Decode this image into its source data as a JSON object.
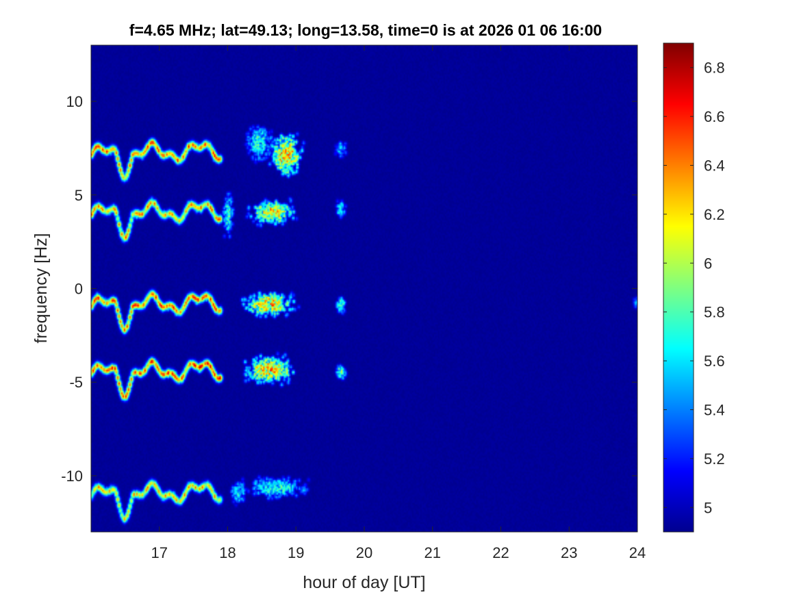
{
  "chart_data": {
    "type": "heatmap",
    "title": "f=4.65 MHz;  lat=49.13; long=13.58, time=0 is at 2026 01 06 16:00",
    "xlabel": "hour of day [UT]",
    "ylabel": "frequency [Hz]",
    "xlim": [
      16,
      24
    ],
    "ylim": [
      -13,
      13
    ],
    "xticks": [
      17,
      18,
      19,
      20,
      21,
      22,
      23,
      24
    ],
    "xtick_labels": [
      "17",
      "18",
      "19",
      "20",
      "21",
      "22",
      "23",
      "24"
    ],
    "yticks": [
      -10,
      -5,
      0,
      5,
      10
    ],
    "ytick_labels": [
      "-10",
      "-5",
      "0",
      "5",
      "10"
    ],
    "colorbar": {
      "limits": [
        4.9,
        6.9
      ],
      "ticks": [
        5,
        5.2,
        5.4,
        5.6,
        5.8,
        6,
        6.2,
        6.4,
        6.6,
        6.8
      ],
      "tick_labels": [
        "5",
        "5.2",
        "5.4",
        "5.6",
        "5.8",
        "6",
        "6.2",
        "6.4",
        "6.6",
        "6.8"
      ],
      "colormap": "jet",
      "background_color": "#00008f"
    },
    "traces": [
      {
        "center_hz": 7.2,
        "x_start": 16.0,
        "x_end": 17.9,
        "peak": 6.7
      },
      {
        "center_hz": 4.0,
        "x_start": 16.0,
        "x_end": 17.9,
        "peak": 6.6
      },
      {
        "center_hz": -0.9,
        "x_start": 16.0,
        "x_end": 17.9,
        "peak": 6.7
      },
      {
        "center_hz": -4.5,
        "x_start": 16.0,
        "x_end": 17.9,
        "peak": 6.8
      },
      {
        "center_hz": -11.0,
        "x_start": 16.0,
        "x_end": 17.9,
        "peak": 6.5
      }
    ],
    "patches": [
      {
        "x": 18.85,
        "y": 7.2,
        "wx": 0.25,
        "wy": 1.2,
        "peak": 6.7
      },
      {
        "x": 18.45,
        "y": 7.8,
        "wx": 0.2,
        "wy": 1.0,
        "peak": 6.0
      },
      {
        "x": 18.65,
        "y": 4.1,
        "wx": 0.35,
        "wy": 0.7,
        "peak": 6.6
      },
      {
        "x": 18.0,
        "y": 4.0,
        "wx": 0.08,
        "wy": 1.2,
        "peak": 6.0
      },
      {
        "x": 18.6,
        "y": -0.8,
        "wx": 0.4,
        "wy": 0.7,
        "peak": 6.7
      },
      {
        "x": 18.6,
        "y": -4.3,
        "wx": 0.4,
        "wy": 0.8,
        "peak": 6.7
      },
      {
        "x": 18.7,
        "y": -10.6,
        "wx": 0.45,
        "wy": 0.6,
        "peak": 6.0
      },
      {
        "x": 18.15,
        "y": -10.8,
        "wx": 0.12,
        "wy": 0.7,
        "peak": 5.9
      },
      {
        "x": 19.65,
        "y": 7.5,
        "wx": 0.08,
        "wy": 0.5,
        "peak": 5.8
      },
      {
        "x": 19.65,
        "y": 4.3,
        "wx": 0.07,
        "wy": 0.5,
        "peak": 6.0
      },
      {
        "x": 19.65,
        "y": -0.8,
        "wx": 0.08,
        "wy": 0.5,
        "peak": 6.1
      },
      {
        "x": 19.65,
        "y": -4.4,
        "wx": 0.08,
        "wy": 0.5,
        "peak": 6.1
      },
      {
        "x": 19.1,
        "y": -10.7,
        "wx": 0.05,
        "wy": 0.2,
        "peak": 5.6
      },
      {
        "x": 23.97,
        "y": -0.7,
        "wx": 0.03,
        "wy": 0.3,
        "peak": 5.6
      }
    ]
  }
}
